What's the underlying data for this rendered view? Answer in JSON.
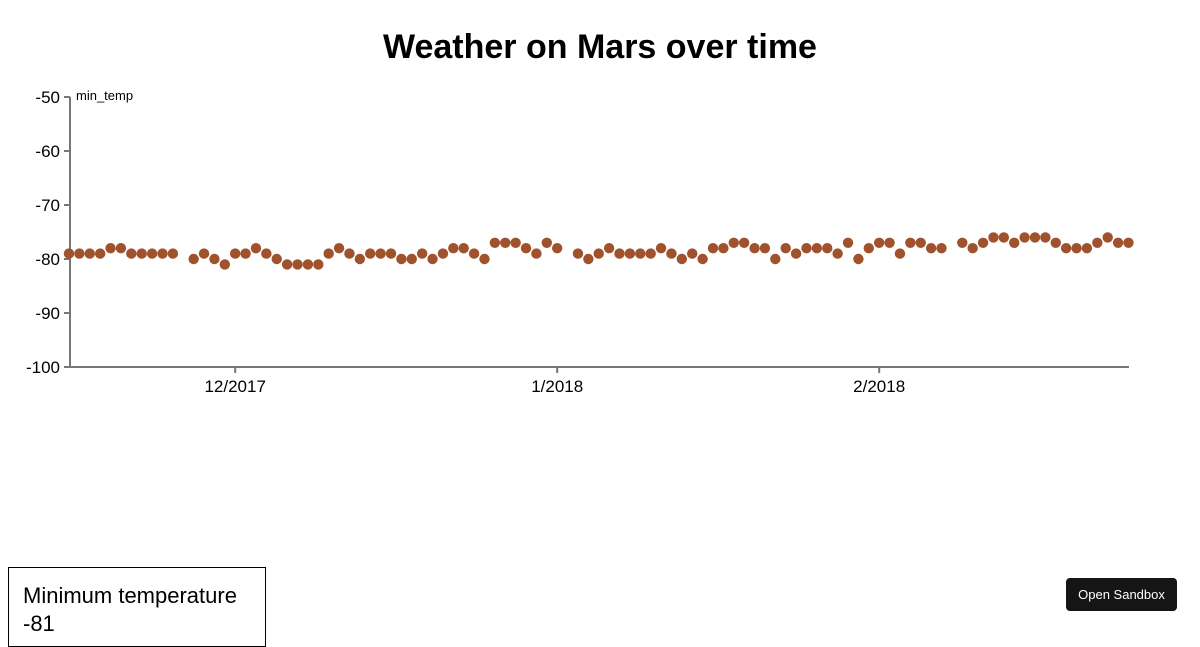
{
  "header": {
    "title": "Weather on Mars over time"
  },
  "chart_data": {
    "type": "scatter",
    "title": "Weather on Mars over time",
    "xlabel": "",
    "ylabel": "min_temp",
    "ylim": [
      -100,
      -50
    ],
    "yticks": [
      -50,
      -60,
      -70,
      -80,
      -90,
      -100
    ],
    "xticks": [
      "12/2017",
      "1/2018",
      "2/2018"
    ],
    "grid": false,
    "color": "#a0522d",
    "x_start": "2017-11-15",
    "x_end": "2018-03-03",
    "points": [
      {
        "date": "2017-11-15",
        "value": -79
      },
      {
        "date": "2017-11-16",
        "value": -79
      },
      {
        "date": "2017-11-17",
        "value": -79
      },
      {
        "date": "2017-11-18",
        "value": -79
      },
      {
        "date": "2017-11-19",
        "value": -78
      },
      {
        "date": "2017-11-20",
        "value": -78
      },
      {
        "date": "2017-11-21",
        "value": -79
      },
      {
        "date": "2017-11-22",
        "value": -79
      },
      {
        "date": "2017-11-23",
        "value": -79
      },
      {
        "date": "2017-11-24",
        "value": -79
      },
      {
        "date": "2017-11-25",
        "value": -79
      },
      {
        "date": "2017-11-27",
        "value": -80
      },
      {
        "date": "2017-11-28",
        "value": -79
      },
      {
        "date": "2017-11-29",
        "value": -80
      },
      {
        "date": "2017-11-30",
        "value": -81
      },
      {
        "date": "2017-12-01",
        "value": -79
      },
      {
        "date": "2017-12-02",
        "value": -79
      },
      {
        "date": "2017-12-03",
        "value": -78
      },
      {
        "date": "2017-12-04",
        "value": -79
      },
      {
        "date": "2017-12-05",
        "value": -80
      },
      {
        "date": "2017-12-06",
        "value": -81
      },
      {
        "date": "2017-12-07",
        "value": -81
      },
      {
        "date": "2017-12-08",
        "value": -81
      },
      {
        "date": "2017-12-09",
        "value": -81
      },
      {
        "date": "2017-12-10",
        "value": -79
      },
      {
        "date": "2017-12-11",
        "value": -78
      },
      {
        "date": "2017-12-12",
        "value": -79
      },
      {
        "date": "2017-12-13",
        "value": -80
      },
      {
        "date": "2017-12-14",
        "value": -79
      },
      {
        "date": "2017-12-15",
        "value": -79
      },
      {
        "date": "2017-12-16",
        "value": -79
      },
      {
        "date": "2017-12-17",
        "value": -80
      },
      {
        "date": "2017-12-18",
        "value": -80
      },
      {
        "date": "2017-12-19",
        "value": -79
      },
      {
        "date": "2017-12-20",
        "value": -80
      },
      {
        "date": "2017-12-21",
        "value": -79
      },
      {
        "date": "2017-12-22",
        "value": -78
      },
      {
        "date": "2017-12-23",
        "value": -78
      },
      {
        "date": "2017-12-24",
        "value": -79
      },
      {
        "date": "2017-12-25",
        "value": -80
      },
      {
        "date": "2017-12-26",
        "value": -77
      },
      {
        "date": "2017-12-27",
        "value": -77
      },
      {
        "date": "2017-12-28",
        "value": -77
      },
      {
        "date": "2017-12-29",
        "value": -78
      },
      {
        "date": "2017-12-30",
        "value": -79
      },
      {
        "date": "2017-12-31",
        "value": -77
      },
      {
        "date": "2018-01-01",
        "value": -78
      },
      {
        "date": "2018-01-03",
        "value": -79
      },
      {
        "date": "2018-01-04",
        "value": -80
      },
      {
        "date": "2018-01-05",
        "value": -79
      },
      {
        "date": "2018-01-06",
        "value": -78
      },
      {
        "date": "2018-01-07",
        "value": -79
      },
      {
        "date": "2018-01-08",
        "value": -79
      },
      {
        "date": "2018-01-09",
        "value": -79
      },
      {
        "date": "2018-01-10",
        "value": -79
      },
      {
        "date": "2018-01-11",
        "value": -78
      },
      {
        "date": "2018-01-12",
        "value": -79
      },
      {
        "date": "2018-01-13",
        "value": -80
      },
      {
        "date": "2018-01-14",
        "value": -79
      },
      {
        "date": "2018-01-15",
        "value": -80
      },
      {
        "date": "2018-01-16",
        "value": -78
      },
      {
        "date": "2018-01-17",
        "value": -78
      },
      {
        "date": "2018-01-18",
        "value": -77
      },
      {
        "date": "2018-01-19",
        "value": -77
      },
      {
        "date": "2018-01-20",
        "value": -78
      },
      {
        "date": "2018-01-21",
        "value": -78
      },
      {
        "date": "2018-01-22",
        "value": -80
      },
      {
        "date": "2018-01-23",
        "value": -78
      },
      {
        "date": "2018-01-24",
        "value": -79
      },
      {
        "date": "2018-01-25",
        "value": -78
      },
      {
        "date": "2018-01-26",
        "value": -78
      },
      {
        "date": "2018-01-27",
        "value": -78
      },
      {
        "date": "2018-01-28",
        "value": -79
      },
      {
        "date": "2018-01-29",
        "value": -77
      },
      {
        "date": "2018-01-30",
        "value": -80
      },
      {
        "date": "2018-01-31",
        "value": -78
      },
      {
        "date": "2018-02-01",
        "value": -77
      },
      {
        "date": "2018-02-02",
        "value": -77
      },
      {
        "date": "2018-02-03",
        "value": -79
      },
      {
        "date": "2018-02-04",
        "value": -77
      },
      {
        "date": "2018-02-05",
        "value": -77
      },
      {
        "date": "2018-02-06",
        "value": -78
      },
      {
        "date": "2018-02-07",
        "value": -78
      },
      {
        "date": "2018-02-09",
        "value": -77
      },
      {
        "date": "2018-02-10",
        "value": -78
      },
      {
        "date": "2018-02-11",
        "value": -77
      },
      {
        "date": "2018-02-12",
        "value": -76
      },
      {
        "date": "2018-02-13",
        "value": -76
      },
      {
        "date": "2018-02-14",
        "value": -77
      },
      {
        "date": "2018-02-15",
        "value": -76
      },
      {
        "date": "2018-02-16",
        "value": -76
      },
      {
        "date": "2018-02-17",
        "value": -76
      },
      {
        "date": "2018-02-18",
        "value": -77
      },
      {
        "date": "2018-02-19",
        "value": -78
      },
      {
        "date": "2018-02-20",
        "value": -78
      },
      {
        "date": "2018-02-21",
        "value": -78
      },
      {
        "date": "2018-02-22",
        "value": -77
      },
      {
        "date": "2018-02-23",
        "value": -76
      },
      {
        "date": "2018-02-24",
        "value": -77
      },
      {
        "date": "2018-02-25",
        "value": -77
      }
    ]
  },
  "summary": {
    "label": "Minimum temperature",
    "value": "-81"
  },
  "sandbox_button": {
    "label": "Open Sandbox"
  }
}
